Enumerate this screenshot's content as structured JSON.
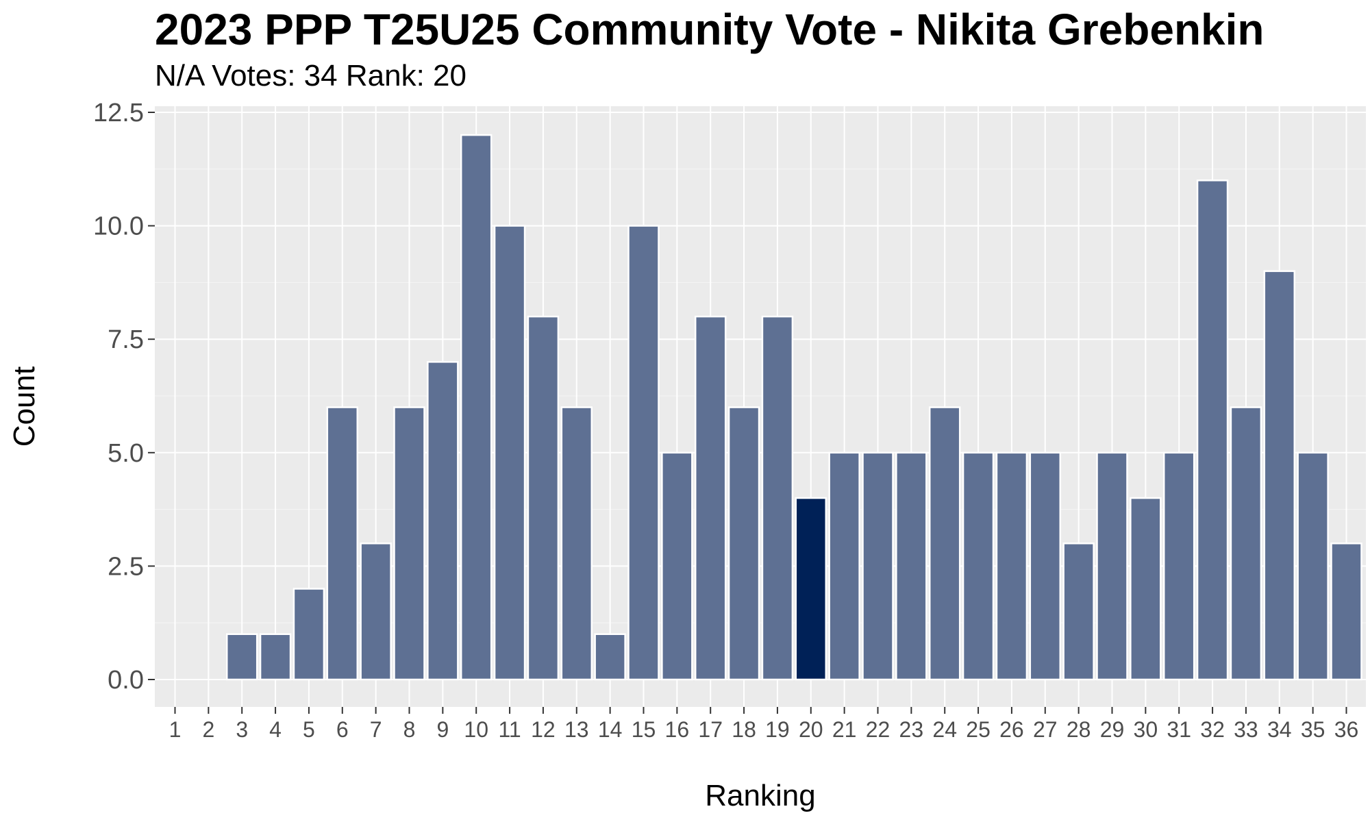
{
  "colors": {
    "panel_background": "#EBEBEB",
    "grid_major": "#FFFFFF",
    "bar_fill": "#5E7093",
    "bar_highlight": "#002157",
    "bar_outline": "#FFFFFF",
    "tick_text": "#4D4D4D"
  },
  "chart_data": {
    "type": "bar",
    "title": "2023 PPP T25U25 Community Vote - Nikita Grebenkin",
    "subtitle": "N/A Votes: 34  Rank: 20",
    "xlabel": "Ranking",
    "ylabel": "Count",
    "categories": [
      "1",
      "2",
      "3",
      "4",
      "5",
      "6",
      "7",
      "8",
      "9",
      "10",
      "11",
      "12",
      "13",
      "14",
      "15",
      "16",
      "17",
      "18",
      "19",
      "20",
      "21",
      "22",
      "23",
      "24",
      "25",
      "26",
      "27",
      "28",
      "29",
      "30",
      "31",
      "32",
      "33",
      "34",
      "35",
      "36"
    ],
    "values": [
      0,
      0,
      1,
      1,
      2,
      6,
      3,
      6,
      7,
      12,
      10,
      8,
      6,
      1,
      10,
      5,
      8,
      6,
      8,
      4,
      5,
      5,
      5,
      6,
      5,
      5,
      5,
      3,
      5,
      4,
      5,
      11,
      6,
      9,
      5,
      3
    ],
    "highlight_category": "20",
    "ylim": [
      0,
      12.5
    ],
    "yticks": [
      0,
      2.5,
      5,
      7.5,
      10,
      12.5
    ],
    "ytick_labels": [
      "0.0",
      "2.5",
      "5.0",
      "7.5",
      "10.0",
      "12.5"
    ],
    "grid": true,
    "legend": "none"
  }
}
